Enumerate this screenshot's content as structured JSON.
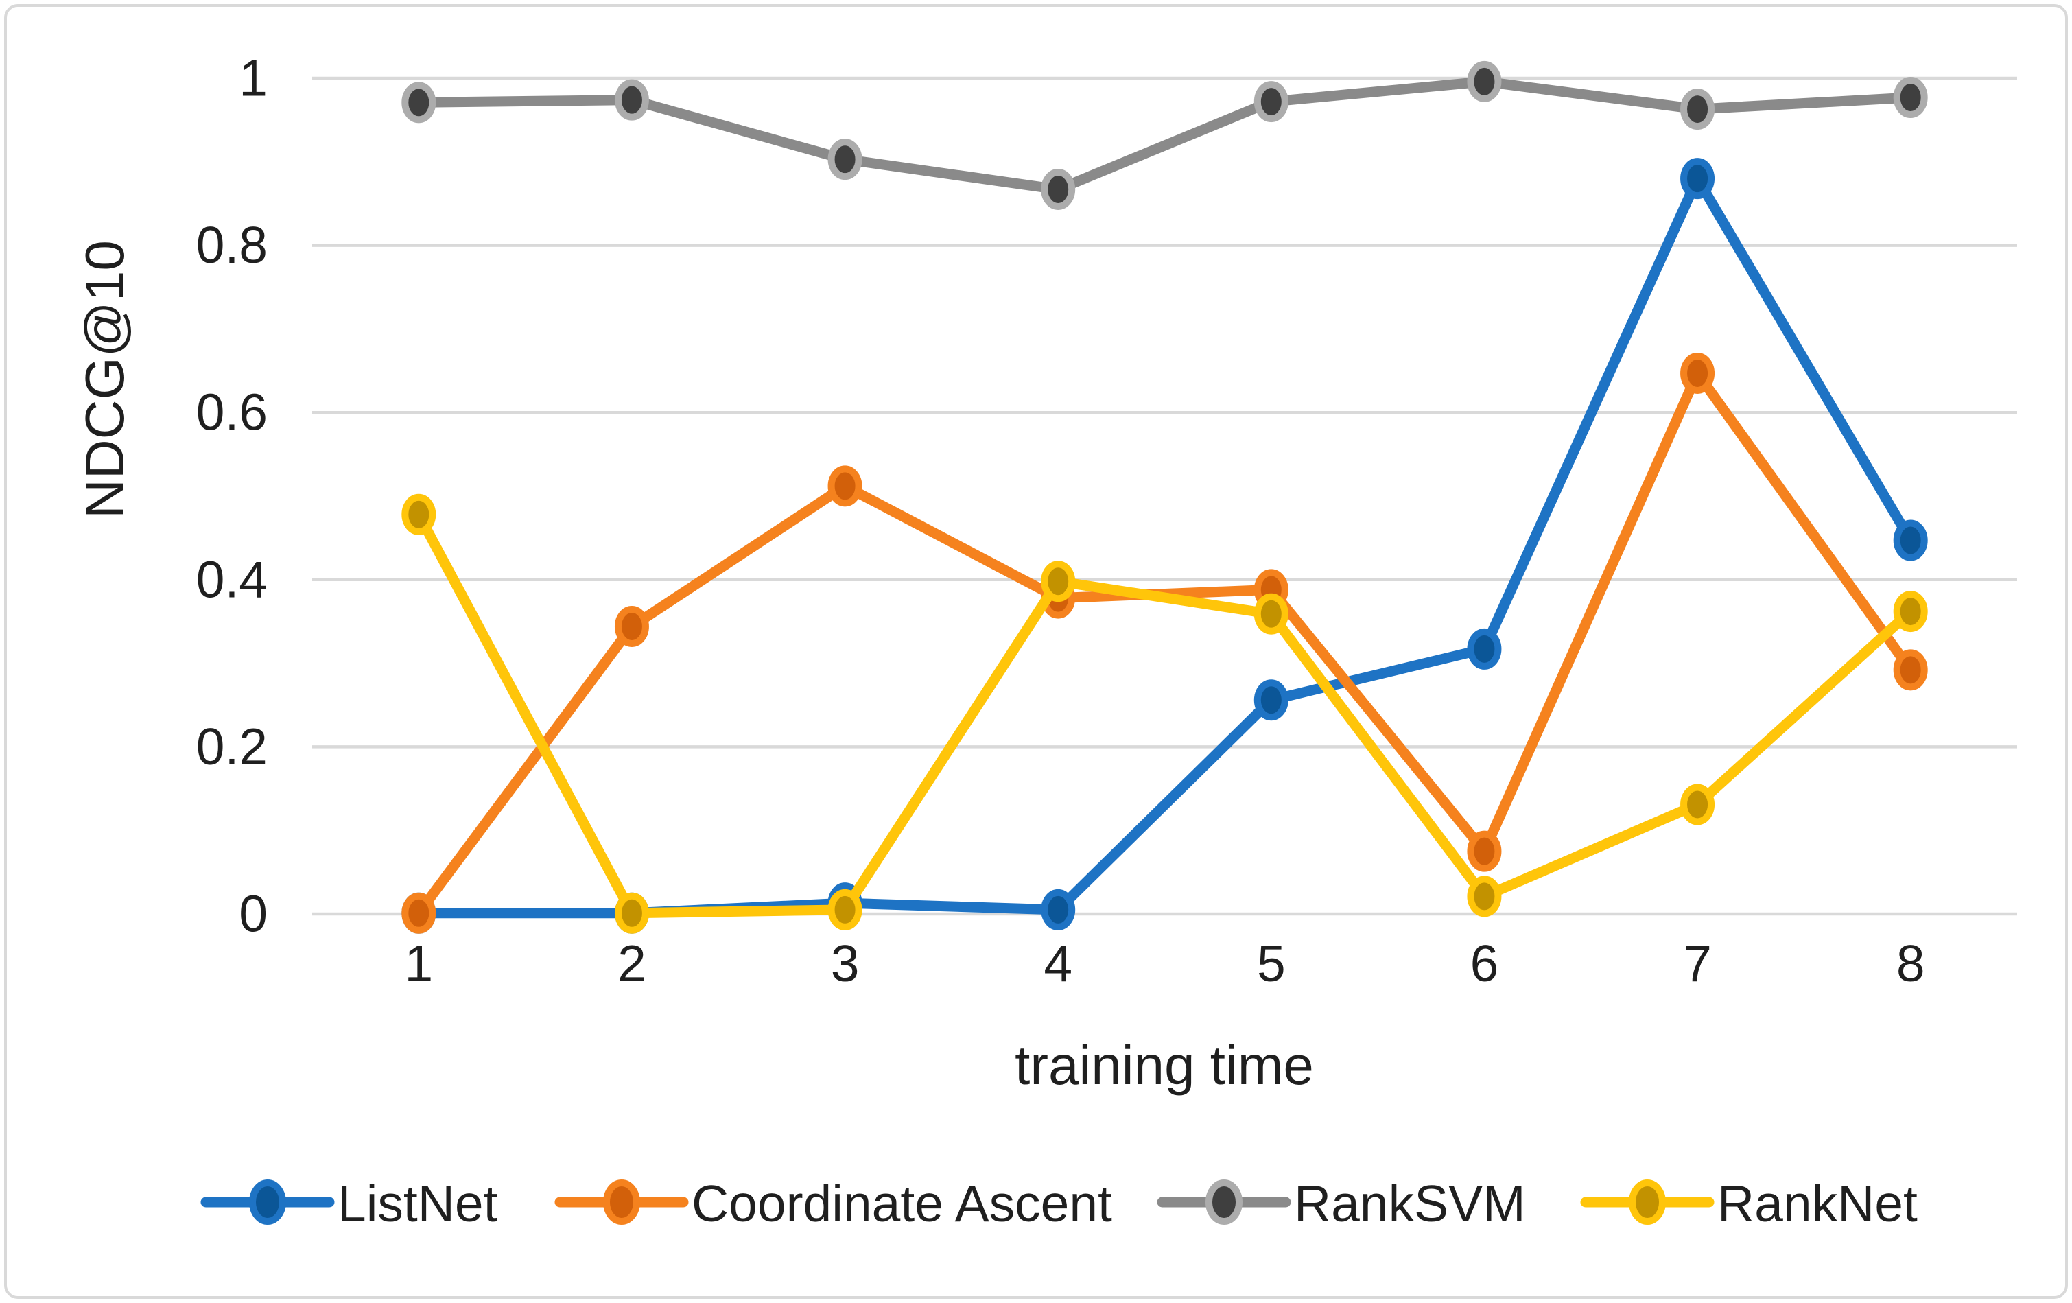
{
  "chart_data": {
    "type": "line",
    "title": "",
    "xlabel": "training time",
    "ylabel": "NDCG@10",
    "x": [
      1,
      2,
      3,
      4,
      5,
      6,
      7,
      8
    ],
    "xtick_labels": [
      "1",
      "2",
      "3",
      "4",
      "5",
      "6",
      "7",
      "8"
    ],
    "ylim": [
      0,
      1
    ],
    "yticks": [
      0,
      0.2,
      0.4,
      0.6,
      0.8,
      1
    ],
    "ytick_labels": [
      "0",
      "0.2",
      "0.4",
      "0.6",
      "0.8",
      "1"
    ],
    "grid": true,
    "legend_position": "bottom",
    "series": [
      {
        "name": "ListNet",
        "color": "#1e73c4",
        "marker_ring": "#1e73c4",
        "marker_fill": "#0b5697",
        "values": [
          0.001,
          0.001,
          0.013,
          0.005,
          0.256,
          0.317,
          0.88,
          0.447
        ]
      },
      {
        "name": "Coordinate Ascent",
        "color": "#f5821e",
        "marker_ring": "#f5821e",
        "marker_fill": "#d2600a",
        "values": [
          0.001,
          0.344,
          0.512,
          0.378,
          0.388,
          0.075,
          0.647,
          0.292
        ]
      },
      {
        "name": "RankSVM",
        "color": "#8a8a8a",
        "marker_ring": "#acacac",
        "marker_fill": "#3f3f3f",
        "values": [
          0.971,
          0.974,
          0.903,
          0.867,
          0.972,
          0.996,
          0.963,
          0.977
        ]
      },
      {
        "name": "RankNet",
        "color": "#ffc50a",
        "marker_ring": "#ffc50a",
        "marker_fill": "#c29200",
        "values": [
          0.478,
          0.001,
          0.005,
          0.398,
          0.359,
          0.021,
          0.131,
          0.362
        ]
      }
    ]
  },
  "colors": {
    "background": "#ffffff",
    "gridline": "#d9d9d9",
    "border": "#d9d9d9",
    "text": "#1f1f1f"
  }
}
